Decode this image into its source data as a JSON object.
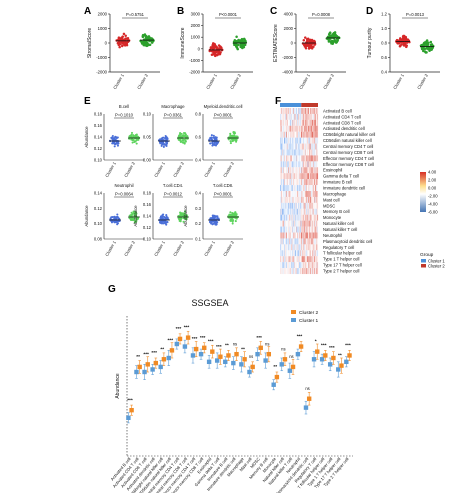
{
  "panel_labels": [
    "A",
    "B",
    "C",
    "D",
    "E",
    "F",
    "G"
  ],
  "colors": {
    "cluster1": "#d62728",
    "cluster2": "#2ca02c",
    "box_c1": "#4a6fd8",
    "box_c2": "#5dd35d",
    "bar_c2": "#f08a24",
    "bar_c1": "#5b9bd5",
    "legend_group_c1": "#4a90d9",
    "legend_group_c2": "#c0392b"
  },
  "chart_data": [
    {
      "type": "scatter",
      "panel": "A",
      "ylabel": "StromalScore",
      "categories": [
        "Cluster 1",
        "Cluster 2"
      ],
      "pvalue": "P=0.5751",
      "yticks": [
        "2000",
        "1000",
        "0",
        "-1000",
        "-2000"
      ],
      "ylim": [
        -2000,
        2000
      ],
      "series": [
        {
          "name": "Cluster 1",
          "mean": 150
        },
        {
          "name": "Cluster 2",
          "mean": 200
        }
      ]
    },
    {
      "type": "scatter",
      "panel": "B",
      "ylabel": "ImmuneScore",
      "categories": [
        "Cluster 1",
        "Cluster 2"
      ],
      "pvalue": "P<0.0001",
      "yticks": [
        "3000",
        "2000",
        "1000",
        "0",
        "-1000",
        "-2000"
      ],
      "ylim": [
        -2000,
        3000
      ],
      "series": [
        {
          "name": "Cluster 1",
          "mean": -100
        },
        {
          "name": "Cluster 2",
          "mean": 500
        }
      ]
    },
    {
      "type": "scatter",
      "panel": "C",
      "ylabel": "ESTIMATEScore",
      "categories": [
        "Cluster 1",
        "Cluster 2"
      ],
      "pvalue": "P=0.0008",
      "yticks": [
        "4000",
        "2000",
        "0",
        "-2000",
        "-4000"
      ],
      "ylim": [
        -4000,
        4000
      ],
      "series": [
        {
          "name": "Cluster 1",
          "mean": 0
        },
        {
          "name": "Cluster 2",
          "mean": 700
        }
      ]
    },
    {
      "type": "scatter",
      "panel": "D",
      "ylabel": "Tumour purity",
      "categories": [
        "Cluster 1",
        "Cluster 2"
      ],
      "pvalue": "P=0.0013",
      "yticks": [
        "1.2",
        "1.0",
        "0.8",
        "0.6",
        "0.4"
      ],
      "ylim": [
        0.4,
        1.2
      ],
      "series": [
        {
          "name": "Cluster 1",
          "mean": 0.82
        },
        {
          "name": "Cluster 2",
          "mean": 0.75
        }
      ]
    },
    {
      "type": "scatter",
      "panel": "E",
      "cells": [
        {
          "title": "B.cell",
          "pvalue": "P=0.1010",
          "ylabel": "Abundance",
          "yticks": [
            "0.18",
            "0.16",
            "0.14",
            "0.12",
            "0.10"
          ],
          "means": [
            0.13,
            0.135
          ]
        },
        {
          "title": "Macrophage",
          "pvalue": "P=0.0361",
          "ylabel": "",
          "yticks": [
            "0.10",
            "0.05",
            "0.00"
          ],
          "means": [
            0.03,
            0.05
          ]
        },
        {
          "title": "Myeloid.dendritic.cell",
          "pvalue": "P<0.0001",
          "ylabel": "",
          "yticks": [
            "0.8",
            "0.6",
            "0.4"
          ],
          "means": [
            0.55,
            0.65
          ]
        },
        {
          "title": "Neutrophil",
          "pvalue": "P=0.0064",
          "ylabel": "Abundance",
          "yticks": [
            "0.14",
            "0.12",
            "0.10",
            "0.08"
          ],
          "means": [
            0.1,
            0.104
          ]
        },
        {
          "title": "T.cell.CD4.",
          "pvalue": "P=0.0012",
          "ylabel": "Abundance",
          "yticks": [
            "0.18",
            "0.16",
            "0.14",
            "0.12",
            "0.10"
          ],
          "means": [
            0.14,
            0.15
          ]
        },
        {
          "title": "T.cell.CD8.",
          "pvalue": "P<0.0001",
          "ylabel": "Abundance",
          "yticks": [
            "0.4",
            "0.3",
            "0.2",
            "0.1"
          ],
          "means": [
            0.22,
            0.28
          ]
        }
      ],
      "categories": [
        "Cluster 1",
        "Cluster 2"
      ]
    },
    {
      "type": "heatmap",
      "panel": "F",
      "rows": [
        "Activated B cell",
        "Activated CD4 T cell",
        "Activated CD8 T cell",
        "Activated dendritic cell",
        "CD56bright natural killer cell",
        "CD56dim natural killer cell",
        "Central memory CD4 T cell",
        "Central memory CD8 T cell",
        "Effector memory CD4 T cell",
        "Effector memory CD8 T cell",
        "Eosinophil",
        "Gamma delta T cell",
        "Immature  B cell",
        "Immature dendritic cell",
        "Macrophage",
        "Mast cell",
        "MDSC",
        "Memory B cell",
        "Monocyte",
        "Natural killer cell",
        "Natural killer T cell",
        "Neutrophil",
        "Plasmacytoid dendritic cell",
        "Regulatory T cell",
        "T follicular helper cell",
        "Type 1 T helper cell",
        "Type 17 T helper cell",
        "Type 2 T helper cell"
      ],
      "colorbar_ticks": [
        "4.00",
        "2.00",
        "0.00",
        "-2.00",
        "-4.00",
        "-6.00"
      ],
      "group_title": "Group",
      "groups": [
        "Cluster 1",
        "Cluster 2"
      ]
    },
    {
      "type": "bar",
      "panel": "G",
      "title": "SSGSEA",
      "ylabel": "Abundance",
      "legend": [
        "Cluster 2",
        "Cluster 1"
      ],
      "categories": [
        "Activated B cell",
        "Activated CD4 T cell",
        "Activated CD8 T cell",
        "Activated dendritic cell",
        "CD56bright natural killer cell",
        "CD56dim natural killer cell",
        "Central memory CD4 T cell",
        "Central memory CD8 T cell",
        "Effector memory CD4 T cell",
        "Effector memory CD8 T cell",
        "Eosinophil",
        "Gamma delta T cell",
        "Immature B cell",
        "Immature dendritic cell",
        "Macrophage",
        "Mast cell",
        "MDSC",
        "Memory B cell",
        "Monocyte",
        "Natural killer cell",
        "Natural killer T cell",
        "Neutrophil",
        "Plasmacytoid dendritic cell",
        "Regulatory T cell",
        "T follicular helper cell",
        "Type 1 T helper cell",
        "Type 17 T helper cell",
        "Type 2 T helper cell"
      ],
      "series": [
        {
          "name": "Cluster 2",
          "values": [
            0.36,
            0.7,
            0.72,
            0.73,
            0.76,
            0.83,
            0.92,
            0.93,
            0.84,
            0.85,
            0.82,
            0.78,
            0.79,
            0.8,
            0.76,
            0.7,
            0.85,
            0.8,
            0.62,
            0.76,
            0.7,
            0.86,
            0.45,
            0.82,
            0.79,
            0.77,
            0.71,
            0.79
          ]
        },
        {
          "name": "Cluster 1",
          "values": [
            0.3,
            0.66,
            0.66,
            0.68,
            0.7,
            0.77,
            0.88,
            0.86,
            0.79,
            0.8,
            0.74,
            0.75,
            0.74,
            0.73,
            0.72,
            0.66,
            0.8,
            0.75,
            0.56,
            0.72,
            0.67,
            0.8,
            0.38,
            0.76,
            0.76,
            0.72,
            0.68,
            0.74
          ]
        }
      ],
      "significance": [
        "***",
        "**",
        "***",
        "***",
        "**",
        "***",
        "***",
        "***",
        "***",
        "***",
        "***",
        "***",
        "**",
        "ns",
        "**",
        "ns",
        "***",
        "ns",
        "**",
        "ns",
        "ns",
        "***",
        "ns",
        "*",
        "***",
        "***",
        "**",
        "***"
      ]
    }
  ]
}
